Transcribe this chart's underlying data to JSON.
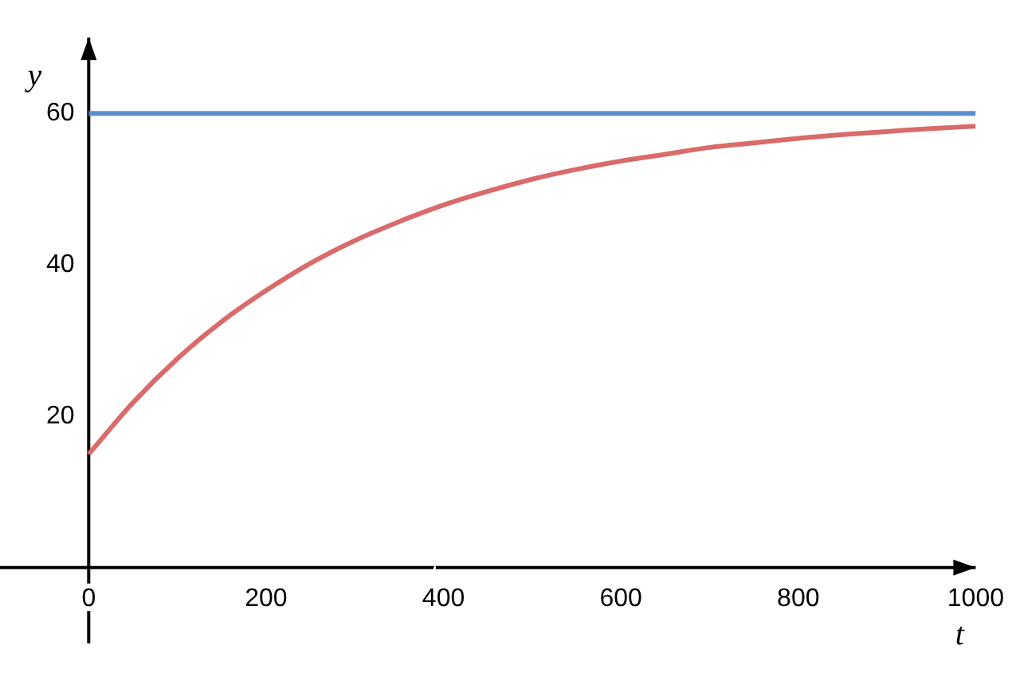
{
  "chart_data": {
    "type": "line",
    "xlabel": "t",
    "ylabel": "y",
    "x": [
      0,
      50,
      100,
      150,
      200,
      250,
      300,
      350,
      400,
      450,
      500,
      550,
      600,
      650,
      700,
      750,
      800,
      850,
      900,
      950,
      1000
    ],
    "series": [
      {
        "color": "#d96b6b",
        "values": [
          15,
          21.8,
          27.6,
          32.5,
          36.6,
          40.2,
          43.2,
          45.7,
          47.9,
          49.7,
          51.3,
          52.6,
          53.7,
          54.6,
          55.5,
          56.1,
          56.7,
          57.2,
          57.6,
          58.0,
          58.3
        ]
      },
      {
        "color": "#5b8fd0",
        "x": [
          0,
          1000
        ],
        "values": [
          60,
          60
        ]
      }
    ],
    "xlim": [
      -100,
      1000
    ],
    "ylim": [
      -10,
      70
    ],
    "xticks": [
      0,
      200,
      400,
      600,
      800,
      1000
    ],
    "yticks": [
      20,
      40,
      60
    ],
    "grid": false,
    "legend": false,
    "marker": "none",
    "line_style": "solid"
  }
}
